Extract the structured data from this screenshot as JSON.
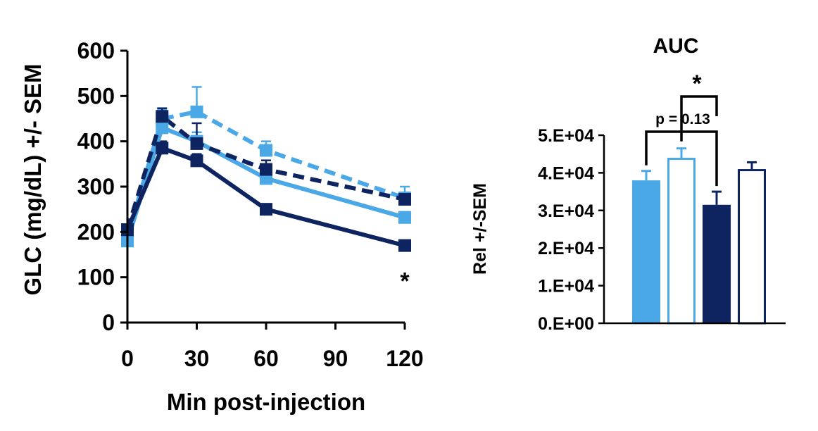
{
  "colors": {
    "light_blue": "#4aa8e6",
    "dark_blue": "#0d2461",
    "axis": "#000000",
    "error_light": "#4aa8e6",
    "error_dark": "#0d2461"
  },
  "chart_data": [
    {
      "type": "line",
      "title": "",
      "xlabel": "Min post-injection",
      "ylabel": "GLC (mg/dL) +/- SEM",
      "xlim": [
        0,
        120
      ],
      "ylim": [
        0,
        600
      ],
      "x_ticks": [
        0,
        30,
        60,
        90,
        120
      ],
      "y_ticks": [
        0,
        100,
        200,
        300,
        400,
        500,
        600
      ],
      "x_tick_labels": [
        "0",
        "30",
        "60",
        "90",
        "120"
      ],
      "y_tick_labels": [
        "0",
        "100",
        "200",
        "300",
        "400",
        "500",
        "600"
      ],
      "grid": false,
      "legend": "none",
      "series": [
        {
          "color": "#4aa8e6",
          "style": "solid",
          "marker": "square",
          "x": [
            0,
            15,
            30,
            60,
            120
          ],
          "y": [
            180,
            430,
            400,
            318,
            232
          ],
          "err": [
            8,
            20,
            20,
            12,
            12
          ]
        },
        {
          "color": "#4aa8e6",
          "style": "dashed",
          "marker": "square",
          "x": [
            0,
            15,
            30,
            60,
            120
          ],
          "y": [
            190,
            450,
            465,
            380,
            275
          ],
          "err": [
            8,
            20,
            55,
            20,
            25
          ]
        },
        {
          "color": "#0d2461",
          "style": "solid",
          "marker": "square",
          "x": [
            0,
            15,
            30,
            60,
            120
          ],
          "y": [
            205,
            385,
            357,
            250,
            170
          ],
          "err": [
            8,
            15,
            15,
            10,
            8
          ]
        },
        {
          "color": "#0d2461",
          "style": "dashed",
          "marker": "square",
          "x": [
            0,
            15,
            30,
            60,
            120
          ],
          "y": [
            205,
            455,
            395,
            338,
            272
          ],
          "err": [
            8,
            18,
            45,
            20,
            15
          ]
        }
      ],
      "annotations": [
        {
          "text": "*",
          "x": 120,
          "y": 105
        }
      ]
    },
    {
      "type": "bar",
      "title": "AUC",
      "xlabel": "",
      "ylabel": "Rel +/-SEM",
      "ylim": [
        0,
        50000
      ],
      "y_ticks": [
        0,
        10000,
        20000,
        30000,
        40000,
        50000
      ],
      "y_tick_labels": [
        "0.E+00",
        "1.E+04",
        "2.E+04",
        "3.E+04",
        "4.E+04",
        "5.E+04"
      ],
      "grid": false,
      "legend": "none",
      "values": [
        38000,
        44000,
        31500,
        41000
      ],
      "errors": [
        2500,
        2500,
        3500,
        1800
      ],
      "fills": [
        "filled",
        "outline",
        "filled",
        "outline"
      ],
      "colors": [
        "#4aa8e6",
        "#4aa8e6",
        "#0d2461",
        "#0d2461"
      ],
      "annotations": {
        "star": "*",
        "p_value": "p = 0.13"
      }
    }
  ]
}
